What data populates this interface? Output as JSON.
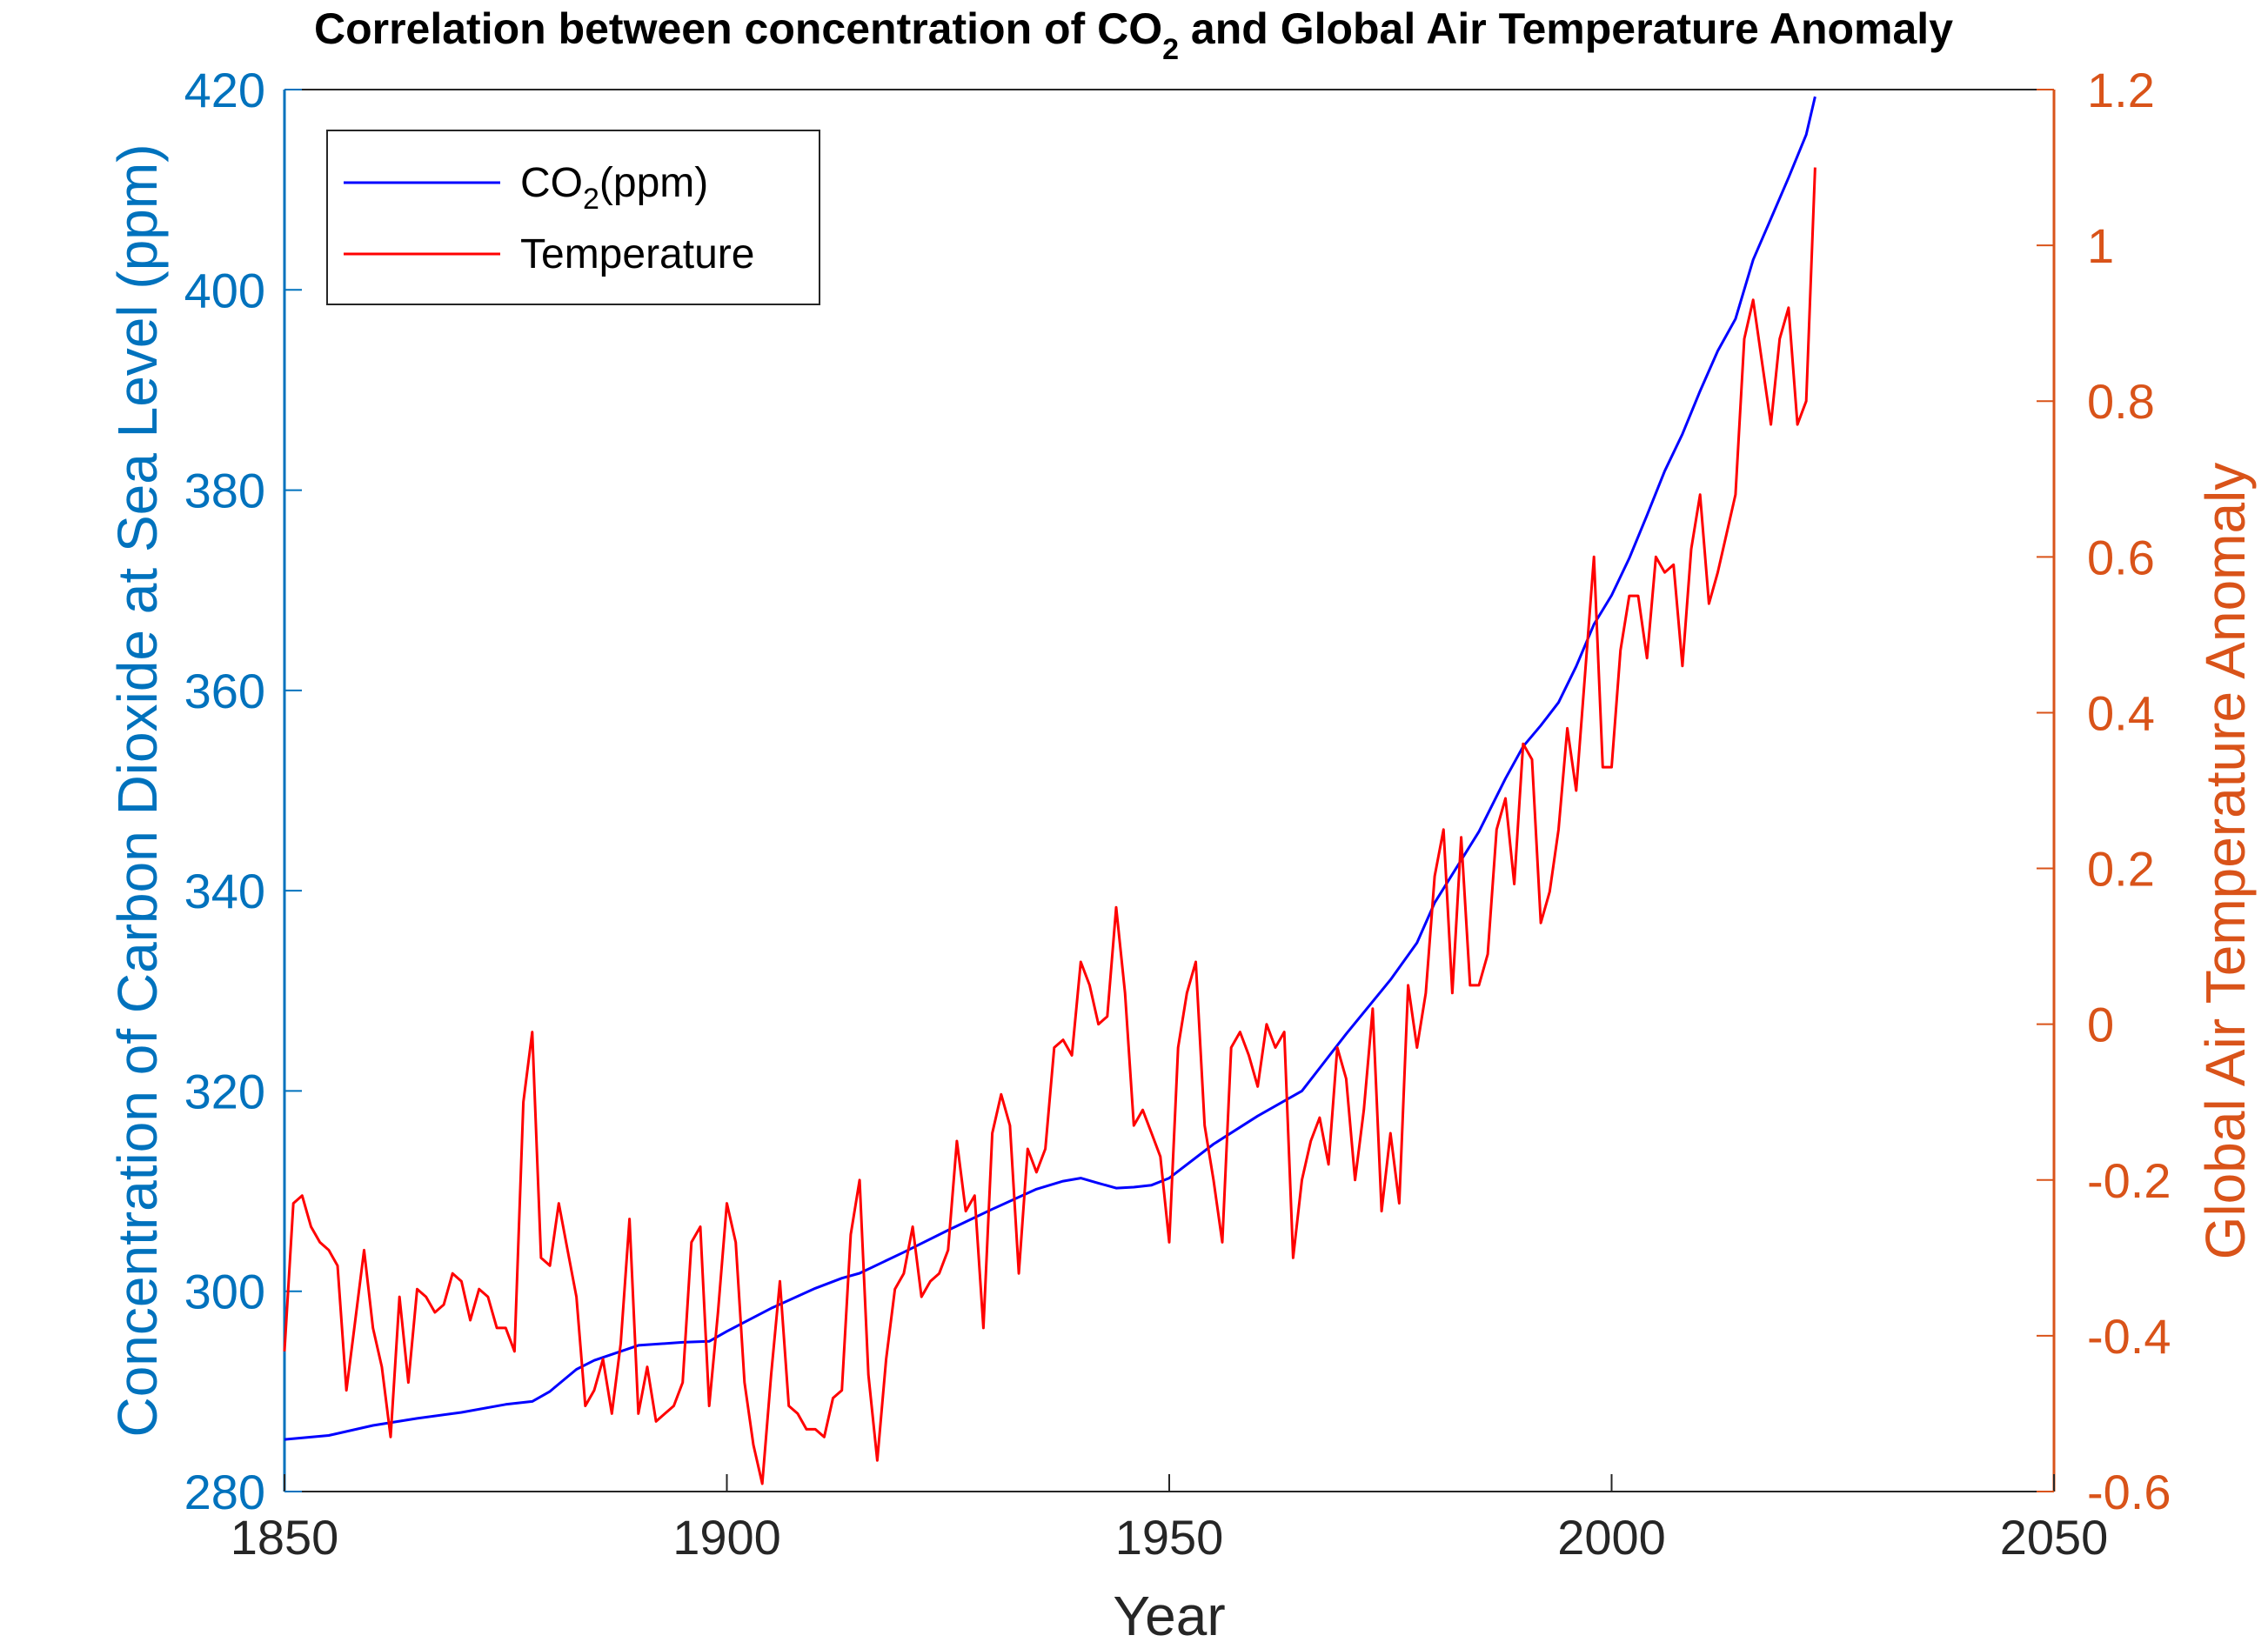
{
  "chart_data": {
    "type": "line",
    "title_parts": {
      "before": "Correlation between concentration of CO",
      "sub": "2",
      "after": " and Global Air Temperature Anomaly"
    },
    "xlabel": "Year",
    "ylabel_left": "Concentration of Carbon Dioxide at Sea Level (ppm)",
    "ylabel_right": "Global Air Temperature Anomaly",
    "xlim": [
      1850,
      2050
    ],
    "ylim_left": [
      280,
      420
    ],
    "ylim_right": [
      -0.6,
      1.2
    ],
    "x_ticks": [
      "1850",
      "1900",
      "1950",
      "2000",
      "2050"
    ],
    "y_left_ticks": [
      "280",
      "300",
      "320",
      "340",
      "360",
      "380",
      "400",
      "420"
    ],
    "y_right_ticks": [
      "-0.6",
      "-0.4",
      "-0.2",
      "0",
      "0.2",
      "0.4",
      "0.6",
      "0.8",
      "1",
      "1.2"
    ],
    "grid": false,
    "legend_position": "top-left",
    "colors": {
      "left_axis": "#0072BD",
      "right_axis": "#D95319",
      "co2_line": "#0000FF",
      "temp_line": "#FF0000"
    },
    "legend": [
      {
        "parts": [
          "CO",
          "2",
          "(ppm)"
        ],
        "color": "#0000FF"
      },
      {
        "parts": [
          "Temperature"
        ],
        "color": "#FF0000"
      }
    ],
    "series": [
      {
        "name": "CO2(ppm)",
        "axis": "left",
        "color": "#0000FF",
        "x": [
          1850,
          1855,
          1860,
          1865,
          1870,
          1875,
          1878,
          1880,
          1883,
          1885,
          1890,
          1895,
          1898,
          1900,
          1905,
          1910,
          1913,
          1915,
          1920,
          1925,
          1930,
          1935,
          1938,
          1940,
          1942,
          1944,
          1946,
          1948,
          1950,
          1955,
          1960,
          1965,
          1970,
          1975,
          1978,
          1980,
          1985,
          1988,
          1990,
          1992,
          1994,
          1996,
          1998,
          2000,
          2002,
          2004,
          2006,
          2008,
          2010,
          2012,
          2014,
          2016,
          2018,
          2020,
          2022,
          2023
        ],
        "y": [
          285.2,
          285.6,
          286.6,
          287.3,
          287.9,
          288.7,
          289.0,
          290.0,
          292.2,
          293.1,
          294.6,
          294.9,
          295.0,
          296.0,
          298.3,
          300.3,
          301.3,
          301.8,
          303.9,
          306.1,
          308.2,
          310.2,
          311.0,
          311.3,
          310.8,
          310.3,
          310.4,
          310.6,
          311.3,
          314.7,
          317.5,
          320.0,
          325.7,
          331.1,
          334.8,
          338.8,
          345.9,
          351.2,
          354.4,
          356.5,
          358.8,
          362.4,
          366.6,
          369.5,
          373.2,
          377.5,
          381.9,
          385.6,
          389.9,
          393.9,
          397.1,
          403.0,
          407.1,
          411.2,
          415.5,
          419.3
        ]
      },
      {
        "name": "Temperature",
        "axis": "right",
        "color": "#FF0000",
        "x": [
          1850,
          1851,
          1852,
          1853,
          1854,
          1855,
          1856,
          1857,
          1858,
          1859,
          1860,
          1861,
          1862,
          1863,
          1864,
          1865,
          1866,
          1867,
          1868,
          1869,
          1870,
          1871,
          1872,
          1873,
          1874,
          1875,
          1876,
          1877,
          1878,
          1879,
          1880,
          1881,
          1882,
          1883,
          1884,
          1885,
          1886,
          1887,
          1888,
          1889,
          1890,
          1891,
          1892,
          1893,
          1894,
          1895,
          1896,
          1897,
          1898,
          1899,
          1900,
          1901,
          1902,
          1903,
          1904,
          1905,
          1906,
          1907,
          1908,
          1909,
          1910,
          1911,
          1912,
          1913,
          1914,
          1915,
          1916,
          1917,
          1918,
          1919,
          1920,
          1921,
          1922,
          1923,
          1924,
          1925,
          1926,
          1927,
          1928,
          1929,
          1930,
          1931,
          1932,
          1933,
          1934,
          1935,
          1936,
          1937,
          1938,
          1939,
          1940,
          1941,
          1942,
          1943,
          1944,
          1945,
          1946,
          1947,
          1948,
          1949,
          1950,
          1951,
          1952,
          1953,
          1954,
          1955,
          1956,
          1957,
          1958,
          1959,
          1960,
          1961,
          1962,
          1963,
          1964,
          1965,
          1966,
          1967,
          1968,
          1969,
          1970,
          1971,
          1972,
          1973,
          1974,
          1975,
          1976,
          1977,
          1978,
          1979,
          1980,
          1981,
          1982,
          1983,
          1984,
          1985,
          1986,
          1987,
          1988,
          1989,
          1990,
          1991,
          1992,
          1993,
          1994,
          1995,
          1996,
          1997,
          1998,
          1999,
          2000,
          2001,
          2002,
          2003,
          2004,
          2005,
          2006,
          2007,
          2008,
          2009,
          2010,
          2011,
          2012,
          2013,
          2014,
          2015,
          2016,
          2017,
          2018,
          2019,
          2020,
          2021,
          2022,
          2023
        ],
        "y": [
          -0.42,
          -0.23,
          -0.22,
          -0.26,
          -0.28,
          -0.29,
          -0.31,
          -0.47,
          -0.38,
          -0.29,
          -0.39,
          -0.44,
          -0.53,
          -0.35,
          -0.46,
          -0.34,
          -0.35,
          -0.37,
          -0.36,
          -0.32,
          -0.33,
          -0.38,
          -0.34,
          -0.35,
          -0.39,
          -0.39,
          -0.42,
          -0.1,
          -0.01,
          -0.3,
          -0.31,
          -0.23,
          -0.29,
          -0.35,
          -0.49,
          -0.47,
          -0.43,
          -0.5,
          -0.41,
          -0.25,
          -0.5,
          -0.44,
          -0.51,
          -0.5,
          -0.49,
          -0.46,
          -0.28,
          -0.26,
          -0.49,
          -0.37,
          -0.23,
          -0.28,
          -0.46,
          -0.54,
          -0.59,
          -0.45,
          -0.33,
          -0.49,
          -0.5,
          -0.52,
          -0.52,
          -0.53,
          -0.48,
          -0.47,
          -0.27,
          -0.2,
          -0.45,
          -0.56,
          -0.43,
          -0.34,
          -0.32,
          -0.26,
          -0.35,
          -0.33,
          -0.32,
          -0.29,
          -0.15,
          -0.24,
          -0.22,
          -0.39,
          -0.14,
          -0.09,
          -0.13,
          -0.32,
          -0.16,
          -0.19,
          -0.16,
          -0.03,
          -0.02,
          -0.04,
          0.08,
          0.05,
          0.0,
          0.01,
          0.15,
          0.04,
          -0.13,
          -0.11,
          -0.14,
          -0.17,
          -0.28,
          -0.03,
          0.04,
          0.08,
          -0.13,
          -0.2,
          -0.28,
          -0.03,
          -0.01,
          -0.04,
          -0.08,
          0.0,
          -0.03,
          -0.01,
          -0.3,
          -0.2,
          -0.15,
          -0.12,
          -0.18,
          -0.03,
          -0.07,
          -0.2,
          -0.11,
          0.02,
          -0.24,
          -0.14,
          -0.23,
          0.05,
          -0.03,
          0.04,
          0.19,
          0.25,
          0.04,
          0.24,
          0.05,
          0.05,
          0.09,
          0.25,
          0.29,
          0.18,
          0.36,
          0.34,
          0.13,
          0.17,
          0.25,
          0.38,
          0.3,
          0.45,
          0.6,
          0.33,
          0.33,
          0.48,
          0.55,
          0.55,
          0.47,
          0.6,
          0.58,
          0.59,
          0.46,
          0.61,
          0.68,
          0.54,
          0.58,
          0.63,
          0.68,
          0.88,
          0.93,
          0.85,
          0.77,
          0.88,
          0.92,
          0.77,
          0.8,
          1.1
        ]
      }
    ]
  }
}
